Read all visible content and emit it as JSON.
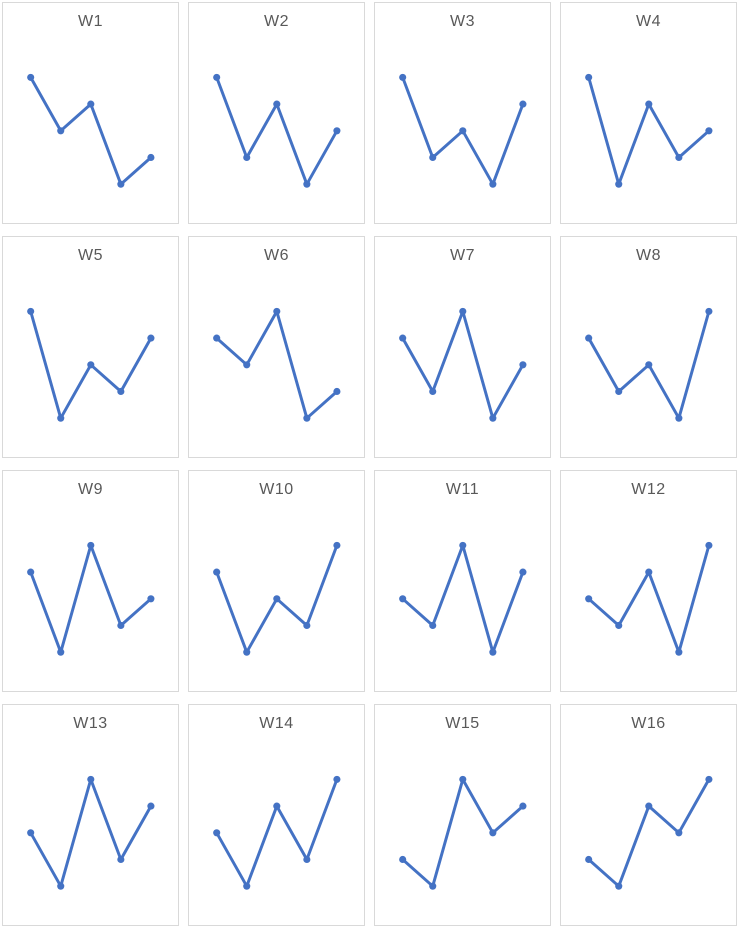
{
  "page": {
    "background_color": "#FFFFFF",
    "cell_border_color": "#D9D9D9",
    "title_color": "#595959",
    "accent_color": "#4472C4",
    "grid": {
      "columns": 4,
      "rows": 4
    }
  },
  "chart_data": [
    {
      "type": "line",
      "title": "W1",
      "x": [
        1,
        2,
        3,
        4,
        5
      ],
      "values": [
        5,
        3,
        4,
        1,
        2
      ],
      "ylim": [
        0.5,
        5.5
      ],
      "grid": false,
      "legend": false,
      "markers": true
    },
    {
      "type": "line",
      "title": "W2",
      "x": [
        1,
        2,
        3,
        4,
        5
      ],
      "values": [
        5,
        2,
        4,
        1,
        3
      ],
      "ylim": [
        0.5,
        5.5
      ],
      "grid": false,
      "legend": false,
      "markers": true
    },
    {
      "type": "line",
      "title": "W3",
      "x": [
        1,
        2,
        3,
        4,
        5
      ],
      "values": [
        5,
        2,
        3,
        1,
        4
      ],
      "ylim": [
        0.5,
        5.5
      ],
      "grid": false,
      "legend": false,
      "markers": true
    },
    {
      "type": "line",
      "title": "W4",
      "x": [
        1,
        2,
        3,
        4,
        5
      ],
      "values": [
        5,
        1,
        4,
        2,
        3
      ],
      "ylim": [
        0.5,
        5.5
      ],
      "grid": false,
      "legend": false,
      "markers": true
    },
    {
      "type": "line",
      "title": "W5",
      "x": [
        1,
        2,
        3,
        4,
        5
      ],
      "values": [
        5,
        1,
        3,
        2,
        4
      ],
      "ylim": [
        0.5,
        5.5
      ],
      "grid": false,
      "legend": false,
      "markers": true
    },
    {
      "type": "line",
      "title": "W6",
      "x": [
        1,
        2,
        3,
        4,
        5
      ],
      "values": [
        4,
        3,
        5,
        1,
        2
      ],
      "ylim": [
        0.5,
        5.5
      ],
      "grid": false,
      "legend": false,
      "markers": true
    },
    {
      "type": "line",
      "title": "W7",
      "x": [
        1,
        2,
        3,
        4,
        5
      ],
      "values": [
        4,
        2,
        5,
        1,
        3
      ],
      "ylim": [
        0.5,
        5.5
      ],
      "grid": false,
      "legend": false,
      "markers": true
    },
    {
      "type": "line",
      "title": "W8",
      "x": [
        1,
        2,
        3,
        4,
        5
      ],
      "values": [
        4,
        2,
        3,
        1,
        5
      ],
      "ylim": [
        0.5,
        5.5
      ],
      "grid": false,
      "legend": false,
      "markers": true
    },
    {
      "type": "line",
      "title": "W9",
      "x": [
        1,
        2,
        3,
        4,
        5
      ],
      "values": [
        4,
        1,
        5,
        2,
        3
      ],
      "ylim": [
        0.5,
        5.5
      ],
      "grid": false,
      "legend": false,
      "markers": true
    },
    {
      "type": "line",
      "title": "W10",
      "x": [
        1,
        2,
        3,
        4,
        5
      ],
      "values": [
        4,
        1,
        3,
        2,
        5
      ],
      "ylim": [
        0.5,
        5.5
      ],
      "grid": false,
      "legend": false,
      "markers": true
    },
    {
      "type": "line",
      "title": "W11",
      "x": [
        1,
        2,
        3,
        4,
        5
      ],
      "values": [
        3,
        2,
        5,
        1,
        4
      ],
      "ylim": [
        0.5,
        5.5
      ],
      "grid": false,
      "legend": false,
      "markers": true
    },
    {
      "type": "line",
      "title": "W12",
      "x": [
        1,
        2,
        3,
        4,
        5
      ],
      "values": [
        3,
        2,
        4,
        1,
        5
      ],
      "ylim": [
        0.5,
        5.5
      ],
      "grid": false,
      "legend": false,
      "markers": true
    },
    {
      "type": "line",
      "title": "W13",
      "x": [
        1,
        2,
        3,
        4,
        5
      ],
      "values": [
        3,
        1,
        5,
        2,
        4
      ],
      "ylim": [
        0.5,
        5.5
      ],
      "grid": false,
      "legend": false,
      "markers": true
    },
    {
      "type": "line",
      "title": "W14",
      "x": [
        1,
        2,
        3,
        4,
        5
      ],
      "values": [
        3,
        1,
        4,
        2,
        5
      ],
      "ylim": [
        0.5,
        5.5
      ],
      "grid": false,
      "legend": false,
      "markers": true
    },
    {
      "type": "line",
      "title": "W15",
      "x": [
        1,
        2,
        3,
        4,
        5
      ],
      "values": [
        2,
        1,
        5,
        3,
        4
      ],
      "ylim": [
        0.5,
        5.5
      ],
      "grid": false,
      "legend": false,
      "markers": true
    },
    {
      "type": "line",
      "title": "W16",
      "x": [
        1,
        2,
        3,
        4,
        5
      ],
      "values": [
        2,
        1,
        4,
        3,
        5
      ],
      "ylim": [
        0.5,
        5.5
      ],
      "grid": false,
      "legend": false,
      "markers": true
    }
  ]
}
